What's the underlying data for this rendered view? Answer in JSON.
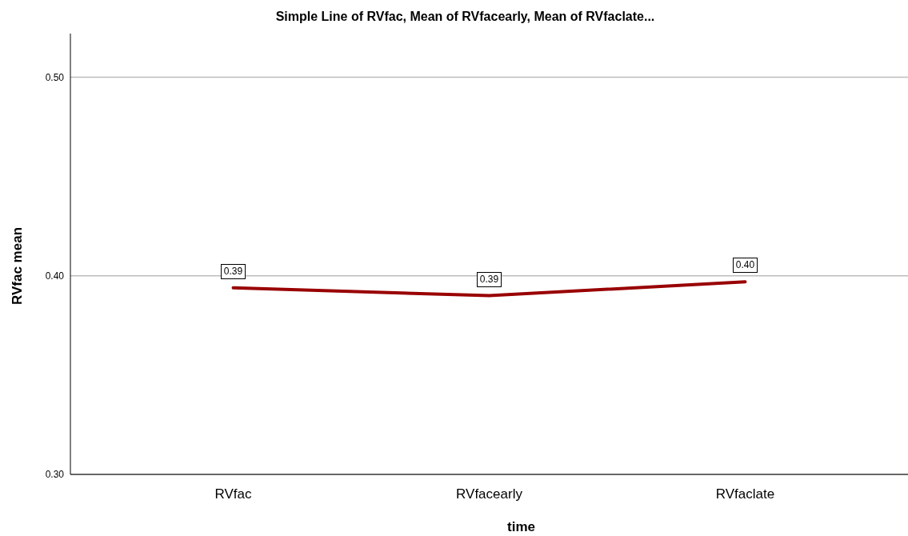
{
  "chart_data": {
    "type": "line",
    "title": "Simple Line of RVfac, Mean of RVfacearly, Mean of RVfaclate...",
    "xlabel": "time",
    "ylabel": "RVfac mean",
    "categories": [
      "RVfac",
      "RVfacearly",
      "RVfaclate"
    ],
    "series": [
      {
        "color": "#990000",
        "values": [
          0.394,
          0.39,
          0.397
        ],
        "value_labels": [
          "0.39",
          "0.39",
          "0.40"
        ]
      }
    ],
    "ylim": [
      0.3,
      0.522
    ],
    "yticks": [
      {
        "value": 0.3,
        "label": "0.30"
      },
      {
        "value": 0.4,
        "label": "0.40"
      },
      {
        "value": 0.5,
        "label": "0.50"
      }
    ],
    "grid": "y",
    "marker": "none",
    "line_style": "solid"
  }
}
